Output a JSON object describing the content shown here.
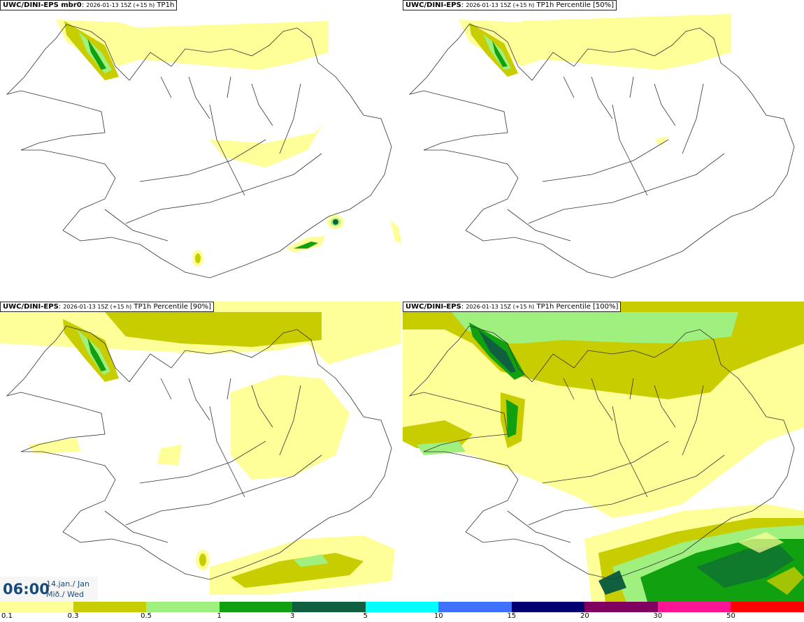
{
  "panels": [
    {
      "model": "UWC/DINI-EPS mbr0",
      "run": "2026-01-13 15Z (+15 h)",
      "product": "TP1h"
    },
    {
      "model": "UWC/DINI-EPS",
      "run": "2026-01-13 15Z (+15 h)",
      "product": "TP1h Percentile [50%]"
    },
    {
      "model": "UWC/DINI-EPS",
      "run": "2026-01-13 15Z (+15 h)",
      "product": "TP1h Percentile [90%]"
    },
    {
      "model": "UWC/DINI-EPS",
      "run": "2026-01-13 15Z (+15 h)",
      "product": "TP1h Percentile [100%]"
    }
  ],
  "valid_time": {
    "time": "06:00",
    "date_line1": "14.jan./ Jan",
    "date_line2": "Mið./ Wed"
  },
  "colorbar": {
    "colors": [
      "#ffff99",
      "#c8cd00",
      "#a0f080",
      "#10a010",
      "#106040",
      "#00ffff",
      "#4070ff",
      "#000070",
      "#800060",
      "#ff1493",
      "#ff0000"
    ],
    "labels": [
      "0.1",
      "0.3",
      "0.5",
      "1",
      "3",
      "5",
      "10",
      "15",
      "20",
      "30",
      "50"
    ]
  }
}
